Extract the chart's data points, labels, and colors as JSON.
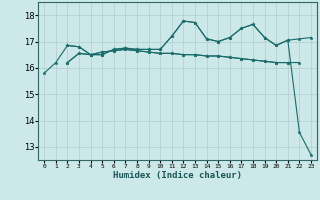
{
  "xlabel": "Humidex (Indice chaleur)",
  "bg_color": "#cce8e8",
  "grid_color": "#b0cccc",
  "line_color": "#1a6b6b",
  "xlim": [
    -0.5,
    23.5
  ],
  "ylim": [
    12.5,
    18.5
  ],
  "yticks": [
    13,
    14,
    15,
    16,
    17,
    18
  ],
  "xtick_labels": [
    "0",
    "1",
    "2",
    "3",
    "4",
    "5",
    "6",
    "7",
    "8",
    "9",
    "10",
    "11",
    "12",
    "13",
    "14",
    "15",
    "16",
    "17",
    "18",
    "19",
    "20",
    "21",
    "22",
    "23"
  ],
  "series": [
    [
      15.8,
      16.2,
      16.85,
      16.8,
      16.5,
      16.6,
      16.65,
      16.7,
      16.65,
      16.6,
      16.55,
      16.55,
      16.5,
      16.5,
      16.45,
      16.45,
      16.4,
      16.35,
      16.3,
      16.25,
      16.2,
      16.2,
      null,
      null
    ],
    [
      null,
      null,
      16.2,
      16.55,
      16.5,
      16.5,
      16.7,
      16.75,
      16.7,
      16.7,
      16.7,
      17.2,
      17.78,
      17.72,
      17.1,
      17.0,
      17.15,
      17.5,
      17.65,
      17.15,
      16.85,
      17.05,
      17.1,
      17.15
    ],
    [
      null,
      null,
      16.2,
      16.55,
      16.5,
      16.5,
      16.7,
      16.75,
      16.7,
      16.7,
      16.7,
      17.2,
      17.78,
      17.72,
      17.1,
      17.0,
      17.15,
      17.5,
      17.65,
      17.15,
      16.85,
      17.05,
      13.55,
      12.7
    ],
    [
      null,
      null,
      16.85,
      16.8,
      16.5,
      16.6,
      16.65,
      16.7,
      16.65,
      16.6,
      16.55,
      16.55,
      16.5,
      16.5,
      16.45,
      16.45,
      16.4,
      16.35,
      16.3,
      16.25,
      16.2,
      16.2,
      16.2,
      null
    ]
  ]
}
